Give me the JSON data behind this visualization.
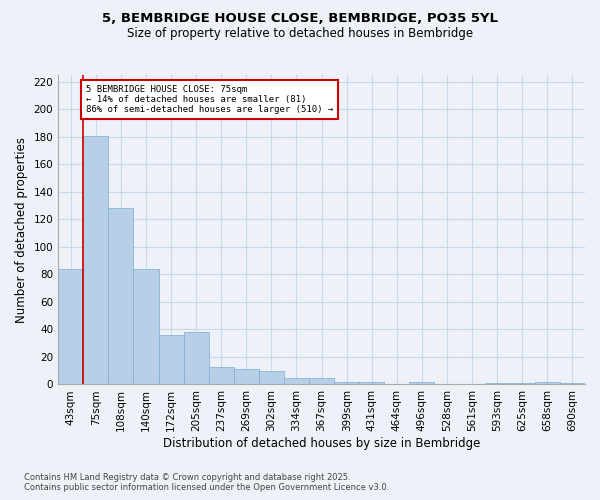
{
  "title_line1": "5, BEMBRIDGE HOUSE CLOSE, BEMBRIDGE, PO35 5YL",
  "title_line2": "Size of property relative to detached houses in Bembridge",
  "xlabel": "Distribution of detached houses by size in Bembridge",
  "ylabel": "Number of detached properties",
  "categories": [
    "43sqm",
    "75sqm",
    "108sqm",
    "140sqm",
    "172sqm",
    "205sqm",
    "237sqm",
    "269sqm",
    "302sqm",
    "334sqm",
    "367sqm",
    "399sqm",
    "431sqm",
    "464sqm",
    "496sqm",
    "528sqm",
    "561sqm",
    "593sqm",
    "625sqm",
    "658sqm",
    "690sqm"
  ],
  "values": [
    84,
    181,
    128,
    84,
    36,
    38,
    13,
    11,
    10,
    5,
    5,
    2,
    2,
    0,
    2,
    0,
    0,
    1,
    1,
    2,
    1
  ],
  "bar_color": "#b8cfe8",
  "bar_edge_color": "#7aadd4",
  "red_line_x": 1,
  "annotation_title": "5 BEMBRIDGE HOUSE CLOSE: 75sqm",
  "annotation_line1": "← 14% of detached houses are smaller (81)",
  "annotation_line2": "86% of semi-detached houses are larger (510) →",
  "annotation_box_color": "#ffffff",
  "annotation_box_edge": "#cc0000",
  "red_line_color": "#cc0000",
  "ylim": [
    0,
    225
  ],
  "yticks": [
    0,
    20,
    40,
    60,
    80,
    100,
    120,
    140,
    160,
    180,
    200,
    220
  ],
  "grid_color": "#c8d8ea",
  "footnote1": "Contains HM Land Registry data © Crown copyright and database right 2025.",
  "footnote2": "Contains public sector information licensed under the Open Government Licence v3.0.",
  "bg_color": "#eef2f8"
}
